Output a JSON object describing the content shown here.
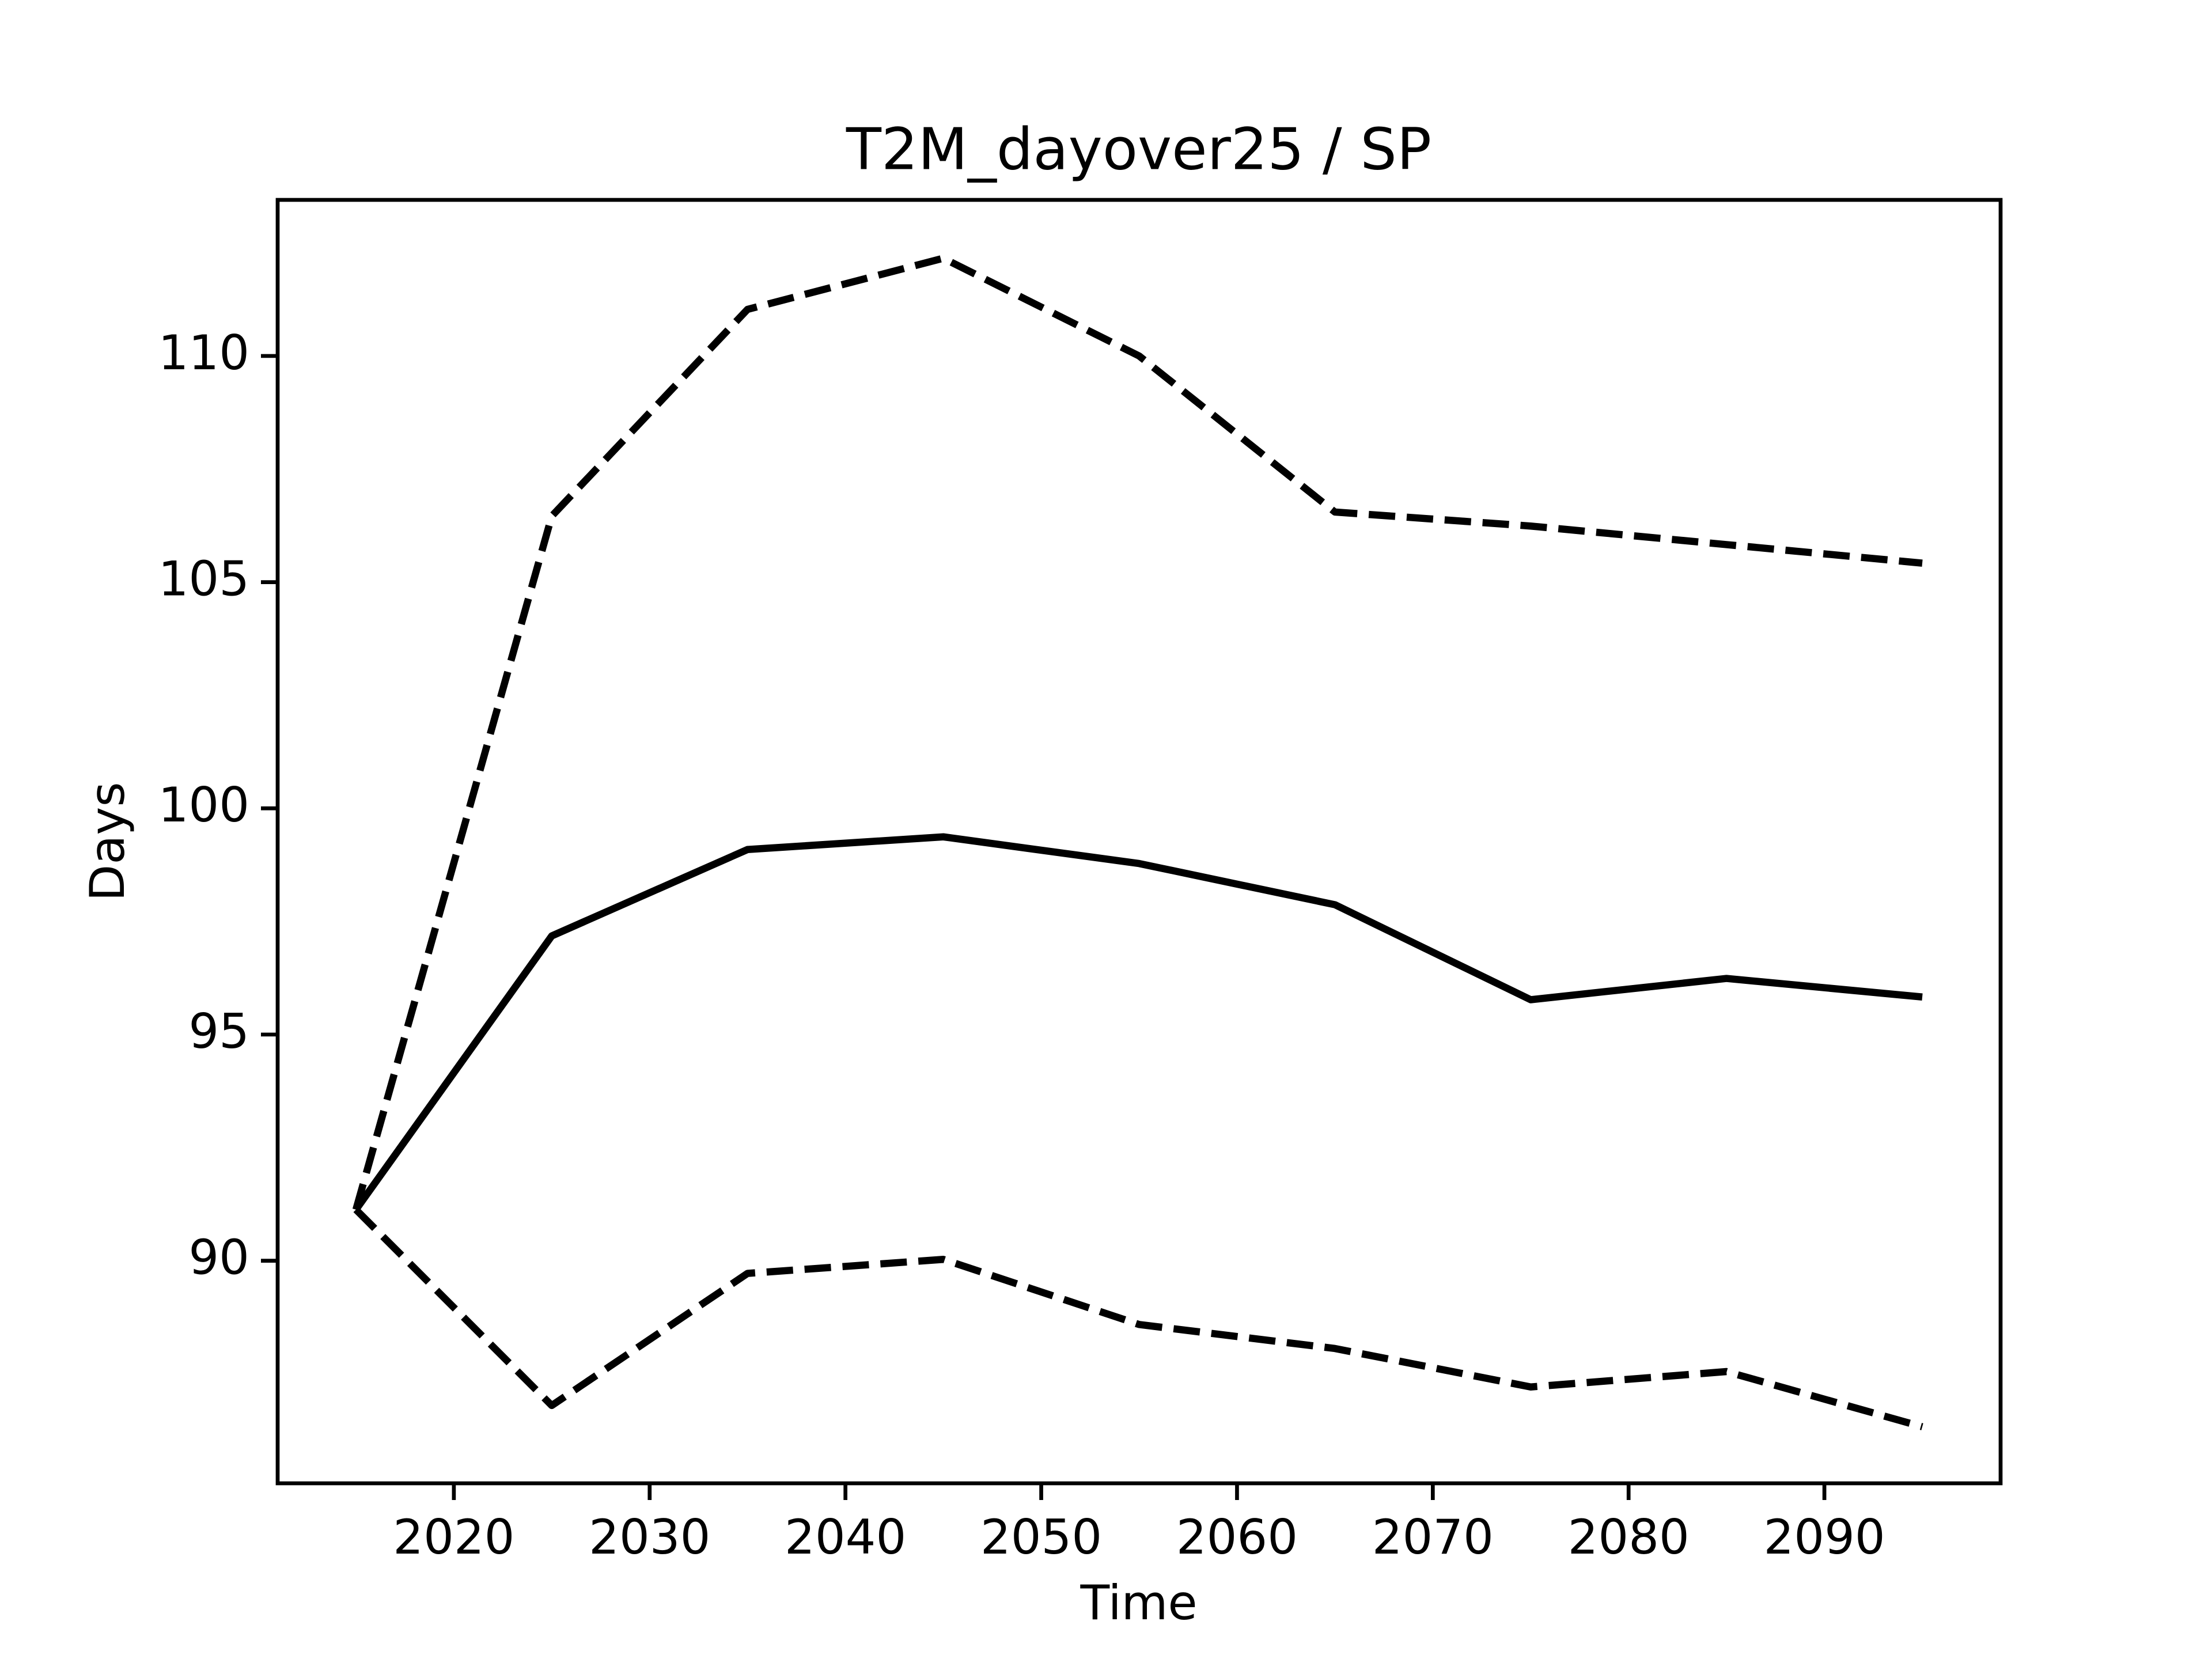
{
  "chart_data": {
    "type": "line",
    "title": "T2M_dayover25 / SP",
    "xlabel": "Time",
    "ylabel": "Days",
    "x": [
      2015,
      2025,
      2035,
      2045,
      2055,
      2065,
      2075,
      2085,
      2095
    ],
    "series": [
      {
        "color": "#000000",
        "linestyle": "solid",
        "values": [
          91.13,
          97.18,
          99.09,
          99.37,
          98.78,
          97.87,
          95.77,
          96.24,
          95.83
        ]
      },
      {
        "color": "#000000",
        "linestyle": "dashed",
        "values": [
          91.13,
          106.46,
          111.03,
          112.16,
          110.0,
          106.55,
          106.24,
          105.83,
          105.42
        ]
      },
      {
        "color": "#000000",
        "linestyle": "dashed",
        "values": [
          91.13,
          86.8,
          89.72,
          90.03,
          88.59,
          88.06,
          87.21,
          87.55,
          86.33
        ]
      }
    ],
    "xlim": [
      2011,
      2099
    ],
    "xticks": [
      2020,
      2030,
      2040,
      2050,
      2060,
      2070,
      2080,
      2090
    ],
    "ylim": [
      85.08,
      113.45
    ],
    "yticks": [
      90,
      95,
      100,
      105,
      110
    ],
    "grid": false
  }
}
